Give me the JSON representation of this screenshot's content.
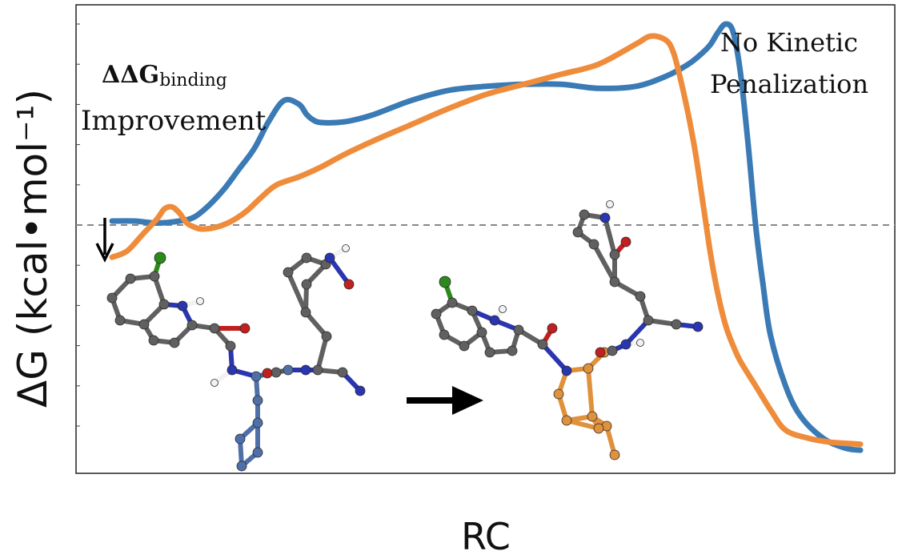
{
  "chart_data": {
    "type": "line",
    "xlabel": "RC",
    "ylabel": "ΔG (kcal•mol⁻¹)",
    "xlim": [
      0,
      100
    ],
    "ylim": [
      -12,
      10
    ],
    "grid": false,
    "reference_line": {
      "y": 0,
      "style": "dashed"
    },
    "series": [
      {
        "color": "#3a7ab5",
        "x": [
          0,
          3,
          6,
          9,
          11,
          13,
          15,
          17,
          19,
          21,
          23,
          25,
          26,
          27,
          28,
          30,
          32,
          35,
          40,
          45,
          50,
          55,
          60,
          65,
          70,
          74,
          77,
          79,
          80,
          81,
          82,
          83,
          84,
          85,
          86,
          87,
          88,
          90,
          92,
          95,
          98,
          100
        ],
        "y": [
          0.2,
          0.2,
          0.1,
          0.2,
          0.4,
          1.0,
          1.8,
          2.8,
          3.8,
          5.2,
          6.2,
          6.0,
          5.5,
          5.2,
          5.1,
          5.1,
          5.2,
          5.5,
          6.2,
          6.7,
          6.9,
          7.0,
          7.0,
          6.8,
          6.9,
          7.4,
          8.0,
          8.6,
          9.0,
          9.6,
          10.0,
          9.6,
          7.5,
          4.0,
          0.0,
          -3.0,
          -5.5,
          -8.0,
          -9.5,
          -10.6,
          -11.1,
          -11.2
        ]
      },
      {
        "color": "#ef8c3b",
        "x": [
          0,
          2,
          4,
          6,
          7,
          8,
          9,
          10,
          11,
          12,
          14,
          16,
          18,
          20,
          22,
          25,
          28,
          31,
          35,
          40,
          45,
          50,
          55,
          60,
          65,
          70,
          72,
          74,
          75,
          76,
          77,
          78,
          79,
          80,
          81,
          82,
          83,
          84,
          86,
          88,
          90,
          93,
          96,
          100
        ],
        "y": [
          -1.6,
          -1.3,
          -0.5,
          0.3,
          0.8,
          0.9,
          0.6,
          0.1,
          -0.1,
          -0.2,
          -0.1,
          0.2,
          0.7,
          1.4,
          2.0,
          2.4,
          2.9,
          3.5,
          4.2,
          5.0,
          5.8,
          6.5,
          7.0,
          7.5,
          8.0,
          9.0,
          9.4,
          9.2,
          8.6,
          7.2,
          5.5,
          3.5,
          1.0,
          -1.5,
          -3.5,
          -5.0,
          -6.0,
          -6.8,
          -8.0,
          -9.2,
          -10.2,
          -10.6,
          -10.8,
          -10.9
        ]
      }
    ],
    "annotations": [
      {
        "label": "binding_term",
        "text_main": "ΔΔG",
        "text_sub": "binding"
      },
      {
        "label": "binding_term_line2",
        "text": "Improvement"
      },
      {
        "label": "kinetic_line1",
        "text": "No Kinetic"
      },
      {
        "label": "kinetic_line2",
        "text": "Penalization"
      }
    ]
  },
  "colors": {
    "carbon": "#606060",
    "nitrogen": "#2a35b0",
    "oxygen": "#c0201e",
    "chlorine": "#2c8a1a",
    "hydrogen": "#f2f2f2",
    "highlight_blue": "#4f6fa8",
    "highlight_orange": "#e0913c"
  }
}
